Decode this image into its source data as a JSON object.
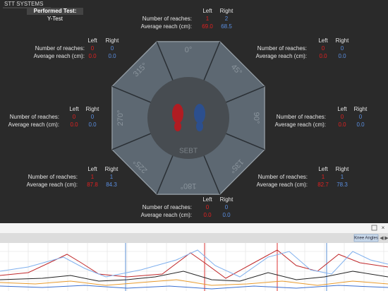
{
  "header": {
    "brand": "STT SYSTEMS",
    "performed_test_label": "Performed Test:",
    "test_name": "Y-Test"
  },
  "octagon": {
    "center_label": "SEBT",
    "angles": [
      "0°",
      "45°",
      "90°",
      "135°",
      "180°",
      "225°",
      "270°",
      "315°"
    ]
  },
  "panels": [
    {
      "direction": "0°",
      "left_header": "Left",
      "right_header": "Right",
      "reaches_label": "Number of reaches:",
      "avg_label": "Average reach (cm):",
      "left_reaches": "1",
      "right_reaches": "2",
      "left_avg": "69.0",
      "right_avg": "68.5"
    },
    {
      "direction": "315°",
      "left_header": "Left",
      "right_header": "Right",
      "reaches_label": "Number of reaches:",
      "avg_label": "Average reach (cm):",
      "left_reaches": "0",
      "right_reaches": "0",
      "left_avg": "0.0",
      "right_avg": "0.0"
    },
    {
      "direction": "45°",
      "left_header": "Left",
      "right_header": "Right",
      "reaches_label": "Number of reaches:",
      "avg_label": "Average reach (cm):",
      "left_reaches": "0",
      "right_reaches": "0",
      "left_avg": "0.0",
      "right_avg": "0.0"
    },
    {
      "direction": "270°",
      "left_header": "Left",
      "right_header": "Right",
      "reaches_label": "Number of reaches:",
      "avg_label": "Average reach (cm):",
      "left_reaches": "0",
      "right_reaches": "0",
      "left_avg": "0.0",
      "right_avg": "0.0"
    },
    {
      "direction": "90°",
      "left_header": "Left",
      "right_header": "Right",
      "reaches_label": "Number of reaches:",
      "avg_label": "Average reach (cm):",
      "left_reaches": "0",
      "right_reaches": "0",
      "left_avg": "0.0",
      "right_avg": "0.0"
    },
    {
      "direction": "225°",
      "left_header": "Left",
      "right_header": "Right",
      "reaches_label": "Number of reaches:",
      "avg_label": "Average reach (cm):",
      "left_reaches": "1",
      "right_reaches": "1",
      "left_avg": "87.8",
      "right_avg": "84.3"
    },
    {
      "direction": "135°",
      "left_header": "Left",
      "right_header": "Right",
      "reaches_label": "Number of reaches:",
      "avg_label": "Average reach (cm):",
      "left_reaches": "1",
      "right_reaches": "1",
      "left_avg": "82.7",
      "right_avg": "78.3"
    },
    {
      "direction": "180°",
      "left_header": "Left",
      "right_header": "Right",
      "reaches_label": "Number of reaches:",
      "avg_label": "Average reach (cm):",
      "left_reaches": "0",
      "right_reaches": "0",
      "left_avg": "0.0",
      "right_avg": "0.0"
    }
  ],
  "toolbar": {
    "button": "Knee Angles"
  }
}
